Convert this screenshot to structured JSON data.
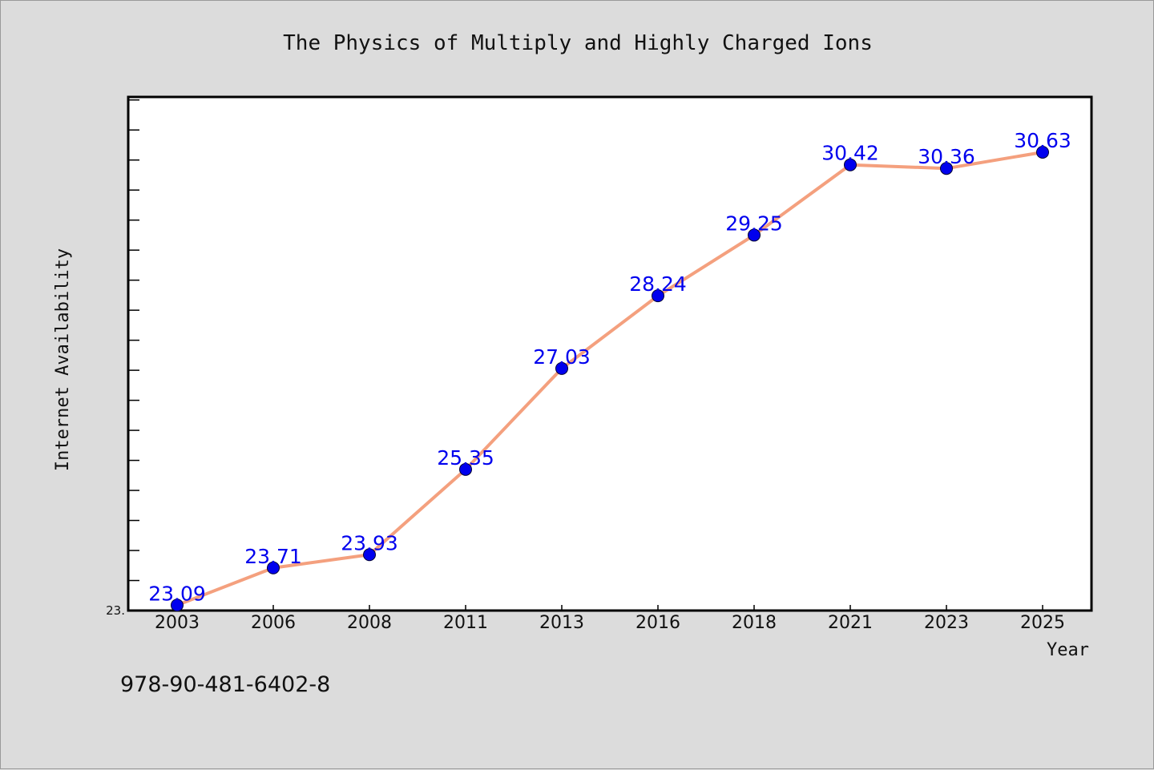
{
  "chart_data": {
    "type": "line",
    "title": "The Physics of Multiply and Highly Charged Ions",
    "xlabel": "Year",
    "ylabel": "Internet Availability",
    "categories": [
      "2003",
      "2006",
      "2008",
      "2011",
      "2013",
      "2016",
      "2018",
      "2021",
      "2023",
      "2025"
    ],
    "series": [
      {
        "values": [
          23.09,
          23.71,
          23.93,
          25.35,
          27.03,
          28.24,
          29.25,
          30.42,
          30.36,
          30.63
        ],
        "labels": [
          "23.09",
          "23.71",
          "23.93",
          "25.35",
          "27.03",
          "28.24",
          "29.25",
          "30.42",
          "30.36",
          "30.63"
        ]
      }
    ],
    "ylim": [
      23.0,
      31.55
    ],
    "yticks": [
      "23."
    ],
    "grid": false,
    "line_color": "#f4a07e",
    "marker_color": "#0000ee",
    "label_color": "#0000ee"
  },
  "footer": {
    "isbn": "978-90-481-6402-8"
  }
}
